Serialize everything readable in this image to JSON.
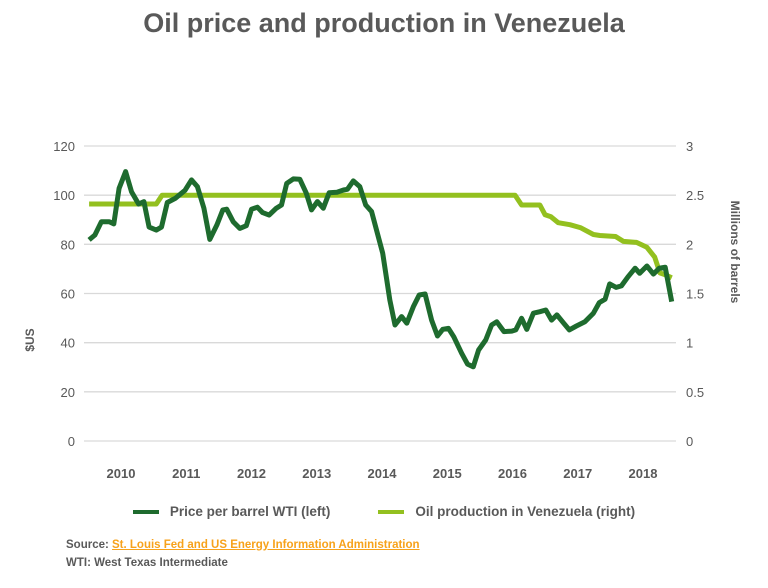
{
  "chart_data": {
    "type": "line",
    "title": "Oil price and production in Venezuela",
    "xlabel": "",
    "ylabel": "$US",
    "ylabel_right": "Millions of barrels",
    "xlim": [
      2010,
      2019
    ],
    "ylim": [
      0,
      120
    ],
    "ylim_right": [
      0,
      3
    ],
    "x_tick_labels": [
      "2010",
      "2011",
      "2012",
      "2013",
      "2014",
      "2015",
      "2016",
      "2017",
      "2018"
    ],
    "y_ticks": [
      0,
      20,
      40,
      60,
      80,
      100,
      120
    ],
    "y_ticks_right": [
      "0",
      "0.5",
      "1",
      "1.5",
      "2",
      "2.5",
      "3"
    ],
    "grid": true,
    "legend_position": "bottom",
    "series": [
      {
        "name": "Price per barrel WTI (left)",
        "axis": "left",
        "color": "#1e6b2e",
        "x": [
          2010.01,
          2010.1,
          2010.2,
          2010.32,
          2010.39,
          2010.47,
          2010.57,
          2010.66,
          2010.77,
          2010.85,
          2010.93,
          2011.04,
          2011.12,
          2011.21,
          2011.33,
          2011.48,
          2011.58,
          2011.67,
          2011.77,
          2011.86,
          2011.97,
          2012.06,
          2012.12,
          2012.22,
          2012.32,
          2012.42,
          2012.5,
          2012.59,
          2012.67,
          2012.77,
          2012.88,
          2012.96,
          2013.04,
          2013.14,
          2013.24,
          2013.34,
          2013.42,
          2013.51,
          2013.6,
          2013.69,
          2013.81,
          2013.91,
          2013.97,
          2014.06,
          2014.16,
          2014.25,
          2014.34,
          2014.51,
          2014.62,
          2014.7,
          2014.8,
          2014.88,
          2014.98,
          2015.07,
          2015.16,
          2015.26,
          2015.35,
          2015.43,
          2015.52,
          2015.6,
          2015.72,
          2015.81,
          2015.9,
          2015.98,
          2016.09,
          2016.18,
          2016.26,
          2016.37,
          2016.49,
          2016.55,
          2016.64,
          2016.72,
          2016.82,
          2016.92,
          2017.01,
          2017.1,
          2017.18,
          2017.28,
          2017.37,
          2017.48,
          2017.61,
          2017.74,
          2017.83,
          2017.92,
          2017.99,
          2018.09,
          2018.17,
          2018.27,
          2018.38,
          2018.45,
          2018.56,
          2018.66,
          2018.75,
          2018.84,
          2018.94
        ],
        "values": [
          81.8,
          83.8,
          89.2,
          89.2,
          88.3,
          102.8,
          109.6,
          101.4,
          96.4,
          97.4,
          87,
          85.8,
          87,
          97,
          98.7,
          102,
          106.2,
          103.5,
          94.7,
          82,
          87.9,
          94,
          94.3,
          89.2,
          86.5,
          87.6,
          94.3,
          95.1,
          92.9,
          91.9,
          94.7,
          96,
          104.8,
          106.6,
          106.5,
          100.8,
          94,
          97.4,
          94.7,
          101,
          101.2,
          102.1,
          102.4,
          105.8,
          103.5,
          96,
          93.3,
          76.4,
          57.4,
          47.2,
          50.6,
          47.9,
          54.6,
          59.4,
          59.8,
          49.2,
          42.7,
          45.4,
          45.8,
          42.4,
          35.7,
          31.3,
          30.2,
          37,
          41.1,
          47.2,
          48.5,
          44.5,
          44.7,
          45.2,
          49.9,
          45.4,
          52,
          52.6,
          53.3,
          49.2,
          51.3,
          48.1,
          45.2,
          46.8,
          48.5,
          52,
          56.3,
          57.7,
          63.9,
          62.5,
          63.1,
          66.8,
          70.3,
          68.2,
          71.2,
          67.9,
          70.3,
          70.7,
          56.7
        ]
      },
      {
        "name": "Oil production in Venezuela (right)",
        "axis": "right",
        "color": "#93c01f",
        "x": [
          2010.01,
          2011.04,
          2011.13,
          2016.54,
          2016.64,
          2016.92,
          2017.0,
          2017.09,
          2017.2,
          2017.38,
          2017.54,
          2017.74,
          2017.84,
          2018.08,
          2018.2,
          2018.4,
          2018.56,
          2018.68,
          2018.76,
          2018.84,
          2018.94
        ],
        "values": [
          2.41,
          2.41,
          2.5,
          2.5,
          2.4,
          2.4,
          2.3,
          2.28,
          2.22,
          2.2,
          2.17,
          2.1,
          2.09,
          2.08,
          2.03,
          2.02,
          1.97,
          1.87,
          1.71,
          1.69,
          1.66
        ]
      }
    ]
  },
  "footer": {
    "source_label": "Source: ",
    "source_link": "St. Louis Fed and US Energy Information Administration",
    "note": "WTI: West Texas Intermediate"
  },
  "colors": {
    "grid": "#d9d9d9",
    "text": "#595959",
    "link": "#f7a21b"
  }
}
